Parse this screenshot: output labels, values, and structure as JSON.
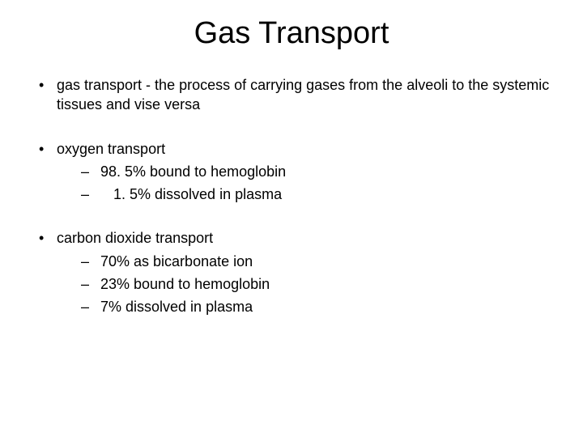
{
  "slide": {
    "background_color": "#ffffff",
    "text_color": "#000000",
    "title": "Gas Transport",
    "title_fontsize": 38,
    "body_fontsize": 18,
    "font_family": "Arial",
    "bullets": [
      {
        "text": "gas transport - the process of carrying gases from the alveoli to the systemic tissues and vise versa",
        "sub": []
      },
      {
        "text": "oxygen transport",
        "sub": [
          {
            "text": "98. 5% bound to hemoglobin",
            "extra_indent": false
          },
          {
            "text": "1. 5% dissolved in plasma",
            "extra_indent": true
          }
        ]
      },
      {
        "text": "carbon dioxide transport",
        "sub": [
          {
            "text": "70% as bicarbonate ion",
            "extra_indent": false
          },
          {
            "text": "23% bound to hemoglobin",
            "extra_indent": false
          },
          {
            "text": "7% dissolved in plasma",
            "extra_indent": false
          }
        ]
      }
    ]
  }
}
